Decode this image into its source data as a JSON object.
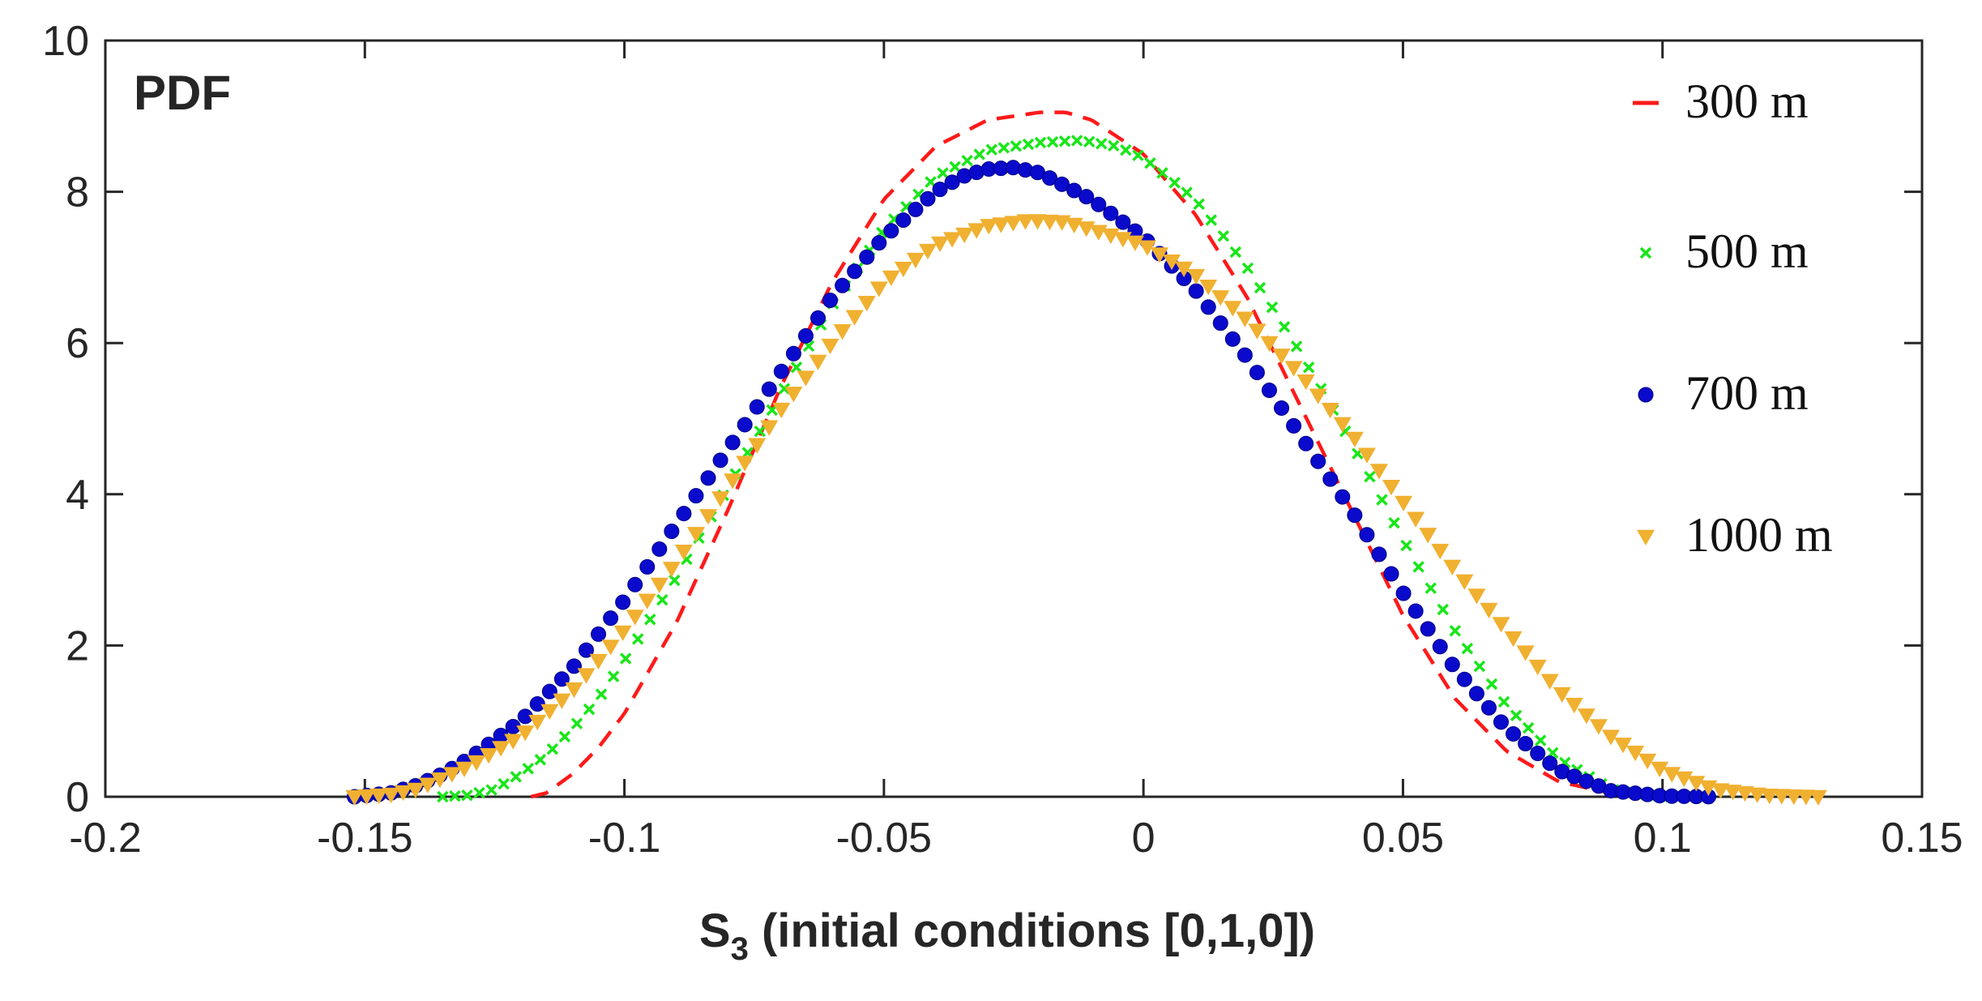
{
  "chart_data": {
    "type": "line",
    "panel_label": "PDF",
    "xlabel_main": "S",
    "xlabel_sub": "3",
    "xlabel_rest": " (initial conditions [0,1,0])",
    "ylabel": "",
    "xlim": [
      -0.2,
      0.15
    ],
    "ylim": [
      0,
      10
    ],
    "xticks": [
      -0.2,
      -0.15,
      -0.1,
      -0.05,
      0,
      0.05,
      0.1,
      0.15
    ],
    "xtick_labels": [
      "-0.2",
      "-0.15",
      "-0.1",
      "-0.05",
      "0",
      "0.05",
      "0.1",
      "0.15"
    ],
    "yticks": [
      0,
      2,
      4,
      6,
      8,
      10
    ],
    "ytick_labels": [
      "0",
      "2",
      "4",
      "6",
      "8",
      "10"
    ],
    "grid": false,
    "legend_position": "top-right",
    "series": [
      {
        "name": "300 m",
        "label": "300 m",
        "style": "dashed-line",
        "color": "#ff1a1a",
        "x": [
          -0.118,
          -0.115,
          -0.11,
          -0.105,
          -0.1,
          -0.09,
          -0.08,
          -0.07,
          -0.06,
          -0.05,
          -0.04,
          -0.03,
          -0.02,
          -0.015,
          -0.01,
          0,
          0.01,
          0.02,
          0.03,
          0.04,
          0.05,
          0.06,
          0.07,
          0.08,
          0.09,
          0.095,
          0.1
        ],
        "y": [
          0,
          0.05,
          0.3,
          0.65,
          1.1,
          2.3,
          3.8,
          5.4,
          6.8,
          7.9,
          8.6,
          8.95,
          9.05,
          9.05,
          8.95,
          8.5,
          7.7,
          6.6,
          5.2,
          3.8,
          2.4,
          1.3,
          0.6,
          0.2,
          0.05,
          0.01,
          0
        ]
      },
      {
        "name": "500 m",
        "label": "500 m",
        "style": "x-marker",
        "color": "#19e619",
        "x": [
          -0.135,
          -0.13,
          -0.125,
          -0.12,
          -0.115,
          -0.11,
          -0.105,
          -0.1,
          -0.09,
          -0.08,
          -0.07,
          -0.06,
          -0.05,
          -0.04,
          -0.03,
          -0.02,
          -0.012,
          -0.005,
          0,
          0.01,
          0.02,
          0.03,
          0.04,
          0.05,
          0.06,
          0.07,
          0.08,
          0.09,
          0.095,
          0.1
        ],
        "y": [
          0,
          0.02,
          0.1,
          0.3,
          0.55,
          0.9,
          1.3,
          1.8,
          2.9,
          4.1,
          5.3,
          6.5,
          7.5,
          8.2,
          8.55,
          8.65,
          8.68,
          8.6,
          8.45,
          7.9,
          7.0,
          5.9,
          4.7,
          3.4,
          2.2,
          1.2,
          0.5,
          0.1,
          0.03,
          0
        ]
      },
      {
        "name": "700 m",
        "label": "700 m",
        "style": "circle-marker",
        "color": "#0a0acc",
        "x": [
          -0.152,
          -0.145,
          -0.14,
          -0.135,
          -0.13,
          -0.125,
          -0.12,
          -0.11,
          -0.1,
          -0.09,
          -0.08,
          -0.07,
          -0.06,
          -0.05,
          -0.04,
          -0.035,
          -0.03,
          -0.025,
          -0.02,
          -0.01,
          0,
          0.01,
          0.02,
          0.03,
          0.04,
          0.05,
          0.06,
          0.07,
          0.08,
          0.09,
          0.1,
          0.11
        ],
        "y": [
          0,
          0.05,
          0.15,
          0.3,
          0.5,
          0.75,
          1.0,
          1.7,
          2.6,
          3.6,
          4.6,
          5.6,
          6.6,
          7.4,
          8.0,
          8.2,
          8.3,
          8.32,
          8.25,
          7.9,
          7.4,
          6.7,
          5.8,
          4.8,
          3.8,
          2.7,
          1.7,
          0.9,
          0.35,
          0.08,
          0.01,
          0
        ]
      },
      {
        "name": "1000 m",
        "label": "1000 m",
        "style": "triangle-marker",
        "color": "#f0b030",
        "x": [
          -0.152,
          -0.145,
          -0.14,
          -0.135,
          -0.13,
          -0.12,
          -0.11,
          -0.1,
          -0.09,
          -0.08,
          -0.07,
          -0.06,
          -0.05,
          -0.04,
          -0.03,
          -0.022,
          -0.015,
          -0.01,
          0,
          0.01,
          0.02,
          0.03,
          0.04,
          0.05,
          0.06,
          0.07,
          0.08,
          0.09,
          0.1,
          0.11,
          0.12,
          0.13
        ],
        "y": [
          0,
          0.03,
          0.1,
          0.25,
          0.4,
          0.8,
          1.4,
          2.2,
          3.1,
          4.1,
          5.1,
          6.0,
          6.8,
          7.3,
          7.55,
          7.62,
          7.6,
          7.5,
          7.3,
          6.9,
          6.3,
          5.6,
          4.8,
          3.9,
          3.0,
          2.2,
          1.4,
          0.8,
          0.35,
          0.1,
          0.02,
          0
        ]
      }
    ]
  }
}
